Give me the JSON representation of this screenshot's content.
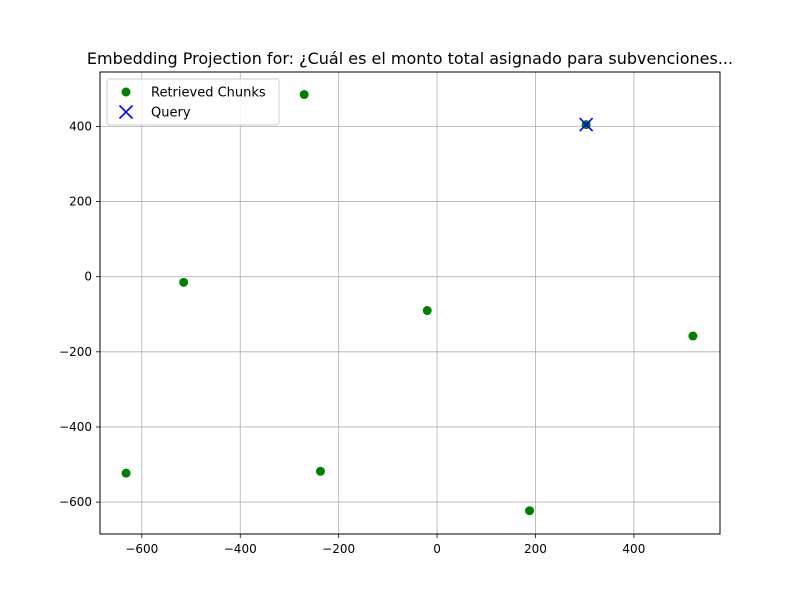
{
  "chart_data": {
    "type": "scatter",
    "title": "Embedding Projection for: ¿Cuál es el monto total asignado para subvenciones...",
    "xlabel": "",
    "ylabel": "",
    "xlim": [
      -685,
      575
    ],
    "ylim": [
      -685,
      545
    ],
    "xticks": [
      -600,
      -400,
      -200,
      0,
      200,
      400
    ],
    "yticks": [
      -600,
      -400,
      -200,
      0,
      200,
      400
    ],
    "xtick_labels": [
      "−600",
      "−400",
      "−200",
      "0",
      "200",
      "400"
    ],
    "ytick_labels": [
      "−600",
      "−400",
      "−200",
      "0",
      "200",
      "400"
    ],
    "grid": true,
    "legend_position": "upper-left",
    "series": [
      {
        "name": "Retrieved Chunks",
        "marker": "circle",
        "color": "#008000",
        "points": [
          {
            "x": -270,
            "y": 485
          },
          {
            "x": 303,
            "y": 405
          },
          {
            "x": -515,
            "y": -15
          },
          {
            "x": -20,
            "y": -90
          },
          {
            "x": 520,
            "y": -158
          },
          {
            "x": -632,
            "y": -523
          },
          {
            "x": -237,
            "y": -518
          },
          {
            "x": 188,
            "y": -623
          }
        ]
      },
      {
        "name": "Query",
        "marker": "x",
        "color": "#0000ff",
        "points": [
          {
            "x": 303,
            "y": 405
          }
        ]
      }
    ]
  }
}
